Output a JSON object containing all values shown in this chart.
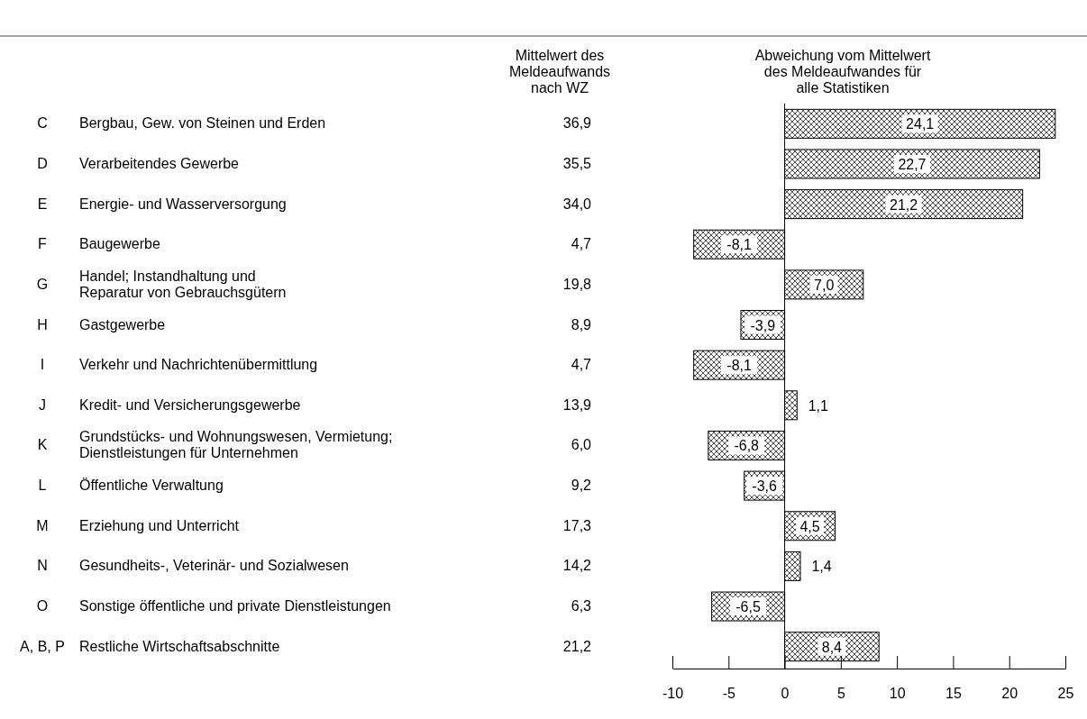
{
  "chart_data": [
    {
      "type": "other",
      "title": "Mittelwert des\nMeldeaufwands\nnach WZ",
      "categories": [
        "Bergbau, Gew. von Steinen und Erden",
        "Verarbeitendes Gewerbe",
        "Energie- und Wasserversorgung",
        "Baugewerbe",
        "Handel; Instandhaltung und\nReparatur von Gebrauchsgütern",
        "Gastgewerbe",
        "Verkehr und Nachrichtenübermittlung",
        "Kredit- und Versicherungsgewerbe",
        "Grundstücks- und Wohnungswesen, Vermietung;\nDienstleistungen für Unternehmen",
        "Öffentliche Verwaltung",
        "Erziehung und Unterricht",
        "Gesundheits-, Veterinär- und Sozialwesen",
        "Sonstige öffentliche und private Dienstleistungen",
        "Restliche Wirtschaftsabschnitte"
      ],
      "y_categories": [
        "C",
        "D",
        "E",
        "F",
        "G",
        "H",
        "I",
        "J",
        "K",
        "L",
        "M",
        "N",
        "O",
        "A, B, P"
      ],
      "values": [
        36.9,
        35.5,
        34.0,
        4.7,
        19.8,
        8.9,
        4.7,
        13.9,
        6.0,
        9.2,
        17.3,
        14.2,
        6.3,
        21.2
      ],
      "value_labels": [
        "36,9",
        "35,5",
        "34,0",
        "4,7",
        "19,8",
        "8,9",
        "4,7",
        "13,9",
        "6,0",
        "9,2",
        "17,3",
        "14,2",
        "6,3",
        "21,2"
      ]
    },
    {
      "type": "bar",
      "orientation": "horizontal",
      "title": "Abweichung vom Mittelwert\ndes Meldeaufwandes für\nalle Statistiken",
      "categories": [
        null,
        null,
        null,
        null,
        null,
        null,
        null,
        null,
        null,
        null,
        null,
        null,
        null,
        null
      ],
      "color": "#000000",
      "values": [
        24.1,
        22.7,
        21.2,
        -8.1,
        7.0,
        -3.9,
        -8.1,
        1.1,
        -6.8,
        -3.6,
        4.5,
        1.4,
        -6.5,
        8.4
      ],
      "value_labels": [
        "24,1",
        "22,7",
        "21,2",
        "-8,1",
        "7,0",
        "-3,9",
        "-8,1",
        "1,1",
        "-6,8",
        "-3,6",
        "4,5",
        "1,4",
        "-6,5",
        "8,4"
      ],
      "xlim": [
        -10,
        25
      ],
      "xticks": [
        -10,
        -5,
        0,
        5,
        10,
        15,
        20,
        25
      ]
    }
  ]
}
